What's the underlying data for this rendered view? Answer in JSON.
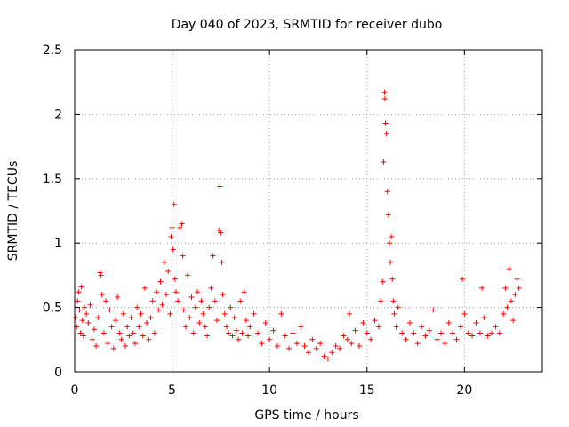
{
  "chart_data": {
    "type": "scatter",
    "title": "Day 040 of 2023, SRMTID for receiver dubo",
    "xlabel": "GPS time / hours",
    "ylabel": "SRMTID / TECUs",
    "xlim": [
      0,
      24
    ],
    "ylim": [
      0,
      2.5
    ],
    "xticks": [
      0,
      5,
      10,
      15,
      20
    ],
    "yticks": [
      0,
      0.5,
      1,
      1.5,
      2,
      2.5
    ],
    "xtick_labels": [
      "0",
      "5",
      "10",
      "15",
      "20"
    ],
    "ytick_labels": [
      "0",
      "0.5",
      "1",
      "1.5",
      "2",
      "2.5"
    ],
    "grid": true,
    "marker": "+",
    "series": [
      {
        "name": "SRMTID",
        "color": "#ff0000",
        "points": [
          [
            0.05,
            0.42
          ],
          [
            0.1,
            0.35
          ],
          [
            0.15,
            0.55
          ],
          [
            0.2,
            0.62
          ],
          [
            0.25,
            0.48
          ],
          [
            0.3,
            0.3
          ],
          [
            0.35,
            0.66
          ],
          [
            0.4,
            0.4
          ],
          [
            0.45,
            0.28
          ],
          [
            0.5,
            0.5
          ],
          [
            0.6,
            0.45
          ],
          [
            0.7,
            0.38
          ],
          [
            0.8,
            0.52
          ],
          [
            0.9,
            0.25
          ],
          [
            1.0,
            0.33
          ],
          [
            1.1,
            0.2
          ],
          [
            1.2,
            0.42
          ],
          [
            1.3,
            0.77
          ],
          [
            1.35,
            0.75
          ],
          [
            1.4,
            0.6
          ],
          [
            1.5,
            0.3
          ],
          [
            1.6,
            0.55
          ],
          [
            1.7,
            0.22
          ],
          [
            1.8,
            0.48
          ],
          [
            1.9,
            0.35
          ],
          [
            2.0,
            0.18
          ],
          [
            2.1,
            0.4
          ],
          [
            2.2,
            0.58
          ],
          [
            2.3,
            0.3
          ],
          [
            2.4,
            0.25
          ],
          [
            2.5,
            0.45
          ],
          [
            2.6,
            0.2
          ],
          [
            2.7,
            0.35
          ],
          [
            2.8,
            0.28
          ],
          [
            2.9,
            0.42
          ],
          [
            3.0,
            0.3
          ],
          [
            3.1,
            0.22
          ],
          [
            3.2,
            0.5
          ],
          [
            3.3,
            0.35
          ],
          [
            3.4,
            0.45
          ],
          [
            3.5,
            0.28
          ],
          [
            3.6,
            0.65
          ],
          [
            3.7,
            0.38
          ],
          [
            3.8,
            0.25
          ],
          [
            3.9,
            0.42
          ],
          [
            4.0,
            0.55
          ],
          [
            4.1,
            0.3
          ],
          [
            4.2,
            0.62
          ],
          [
            4.3,
            0.48
          ],
          [
            4.4,
            0.7
          ],
          [
            4.5,
            0.52
          ],
          [
            4.6,
            0.85
          ],
          [
            4.7,
            0.6
          ],
          [
            4.8,
            0.78
          ],
          [
            4.9,
            0.45
          ],
          [
            4.95,
            1.05
          ],
          [
            5.0,
            1.12
          ],
          [
            5.05,
            0.95
          ],
          [
            5.1,
            1.3
          ],
          [
            5.15,
            0.72
          ],
          [
            5.2,
            0.62
          ],
          [
            5.3,
            0.55
          ],
          [
            5.4,
            1.12
          ],
          [
            5.5,
            1.15
          ],
          [
            5.55,
            0.9
          ],
          [
            5.6,
            0.48
          ],
          [
            5.7,
            0.35
          ],
          [
            5.8,
            0.75
          ],
          [
            5.9,
            0.42
          ],
          [
            6.0,
            0.58
          ],
          [
            6.1,
            0.3
          ],
          [
            6.2,
            0.5
          ],
          [
            6.3,
            0.62
          ],
          [
            6.4,
            0.38
          ],
          [
            6.5,
            0.55
          ],
          [
            6.6,
            0.45
          ],
          [
            6.7,
            0.35
          ],
          [
            6.8,
            0.28
          ],
          [
            6.9,
            0.5
          ],
          [
            7.0,
            0.65
          ],
          [
            7.1,
            0.9
          ],
          [
            7.2,
            0.55
          ],
          [
            7.3,
            0.4
          ],
          [
            7.4,
            1.1
          ],
          [
            7.45,
            1.44
          ],
          [
            7.5,
            1.08
          ],
          [
            7.55,
            0.85
          ],
          [
            7.6,
            0.6
          ],
          [
            7.7,
            0.45
          ],
          [
            7.8,
            0.35
          ],
          [
            7.9,
            0.3
          ],
          [
            8.0,
            0.5
          ],
          [
            8.1,
            0.28
          ],
          [
            8.2,
            0.42
          ],
          [
            8.3,
            0.32
          ],
          [
            8.4,
            0.25
          ],
          [
            8.5,
            0.55
          ],
          [
            8.6,
            0.3
          ],
          [
            8.7,
            0.62
          ],
          [
            8.8,
            0.4
          ],
          [
            8.9,
            0.28
          ],
          [
            9.0,
            0.35
          ],
          [
            9.2,
            0.45
          ],
          [
            9.4,
            0.3
          ],
          [
            9.6,
            0.22
          ],
          [
            9.8,
            0.38
          ],
          [
            10.0,
            0.25
          ],
          [
            10.2,
            0.32
          ],
          [
            10.4,
            0.2
          ],
          [
            10.6,
            0.45
          ],
          [
            10.8,
            0.28
          ],
          [
            11.0,
            0.18
          ],
          [
            11.2,
            0.3
          ],
          [
            11.4,
            0.22
          ],
          [
            11.6,
            0.35
          ],
          [
            11.8,
            0.2
          ],
          [
            12.0,
            0.15
          ],
          [
            12.2,
            0.25
          ],
          [
            12.4,
            0.18
          ],
          [
            12.6,
            0.22
          ],
          [
            12.8,
            0.12
          ],
          [
            13.0,
            0.1
          ],
          [
            13.2,
            0.15
          ],
          [
            13.4,
            0.2
          ],
          [
            13.6,
            0.18
          ],
          [
            13.8,
            0.28
          ],
          [
            14.0,
            0.25
          ],
          [
            14.1,
            0.45
          ],
          [
            14.2,
            0.22
          ],
          [
            14.4,
            0.32
          ],
          [
            14.6,
            0.2
          ],
          [
            14.8,
            0.38
          ],
          [
            15.0,
            0.3
          ],
          [
            15.2,
            0.25
          ],
          [
            15.4,
            0.4
          ],
          [
            15.6,
            0.35
          ],
          [
            15.7,
            0.55
          ],
          [
            15.8,
            0.7
          ],
          [
            15.85,
            1.63
          ],
          [
            15.9,
            2.17
          ],
          [
            15.92,
            2.12
          ],
          [
            15.95,
            1.93
          ],
          [
            16.0,
            1.85
          ],
          [
            16.05,
            1.4
          ],
          [
            16.1,
            1.22
          ],
          [
            16.15,
            1.0
          ],
          [
            16.2,
            0.85
          ],
          [
            16.25,
            1.05
          ],
          [
            16.3,
            0.72
          ],
          [
            16.35,
            0.55
          ],
          [
            16.4,
            0.45
          ],
          [
            16.5,
            0.35
          ],
          [
            16.6,
            0.5
          ],
          [
            16.8,
            0.3
          ],
          [
            17.0,
            0.25
          ],
          [
            17.2,
            0.38
          ],
          [
            17.4,
            0.3
          ],
          [
            17.6,
            0.22
          ],
          [
            17.8,
            0.35
          ],
          [
            18.0,
            0.28
          ],
          [
            18.2,
            0.32
          ],
          [
            18.4,
            0.48
          ],
          [
            18.6,
            0.25
          ],
          [
            18.8,
            0.3
          ],
          [
            19.0,
            0.22
          ],
          [
            19.2,
            0.38
          ],
          [
            19.4,
            0.3
          ],
          [
            19.6,
            0.25
          ],
          [
            19.8,
            0.35
          ],
          [
            19.9,
            0.72
          ],
          [
            20.0,
            0.45
          ],
          [
            20.2,
            0.3
          ],
          [
            20.4,
            0.28
          ],
          [
            20.6,
            0.38
          ],
          [
            20.8,
            0.3
          ],
          [
            20.9,
            0.65
          ],
          [
            21.0,
            0.42
          ],
          [
            21.2,
            0.28
          ],
          [
            21.4,
            0.3
          ],
          [
            21.6,
            0.35
          ],
          [
            21.8,
            0.3
          ],
          [
            22.0,
            0.45
          ],
          [
            22.1,
            0.65
          ],
          [
            22.2,
            0.5
          ],
          [
            22.3,
            0.8
          ],
          [
            22.4,
            0.55
          ],
          [
            22.5,
            0.4
          ],
          [
            22.6,
            0.6
          ],
          [
            22.7,
            0.72
          ],
          [
            22.8,
            0.65
          ]
        ]
      }
    ]
  }
}
